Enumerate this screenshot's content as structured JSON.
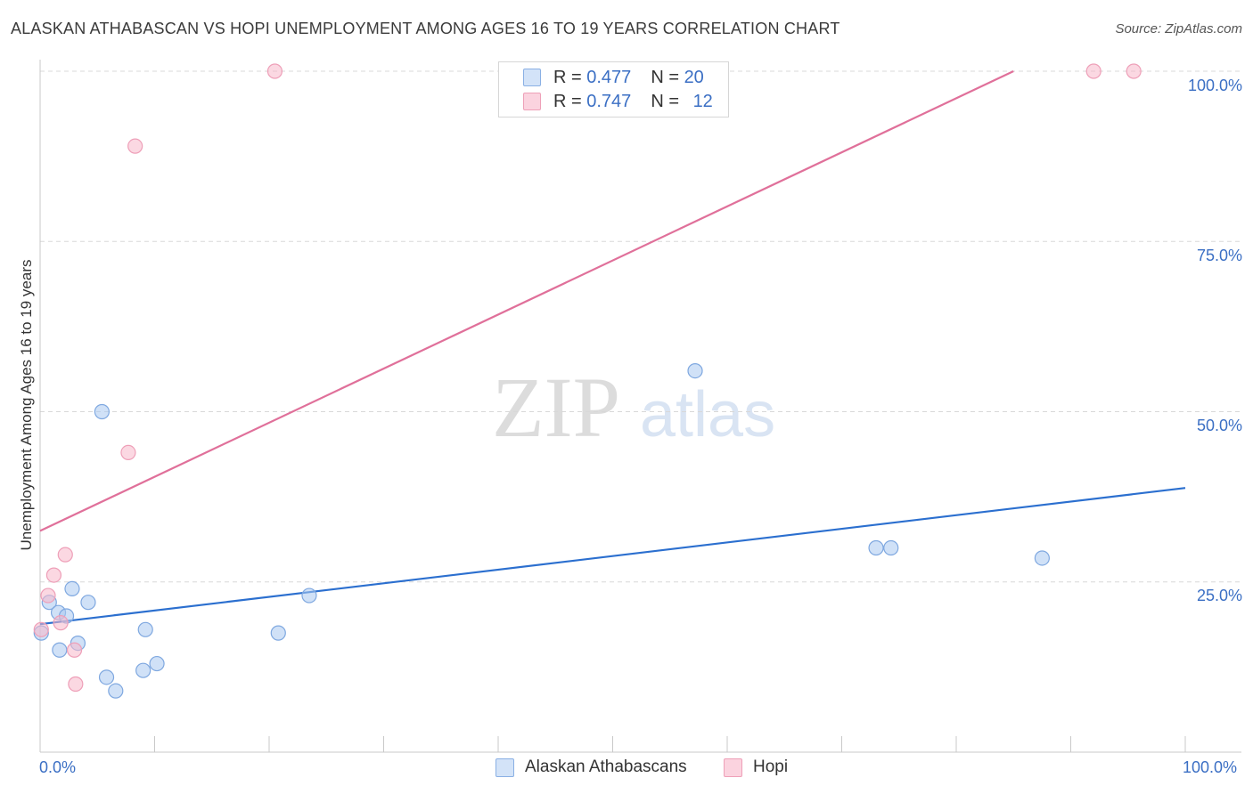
{
  "title": "ALASKAN ATHABASCAN VS HOPI UNEMPLOYMENT AMONG AGES 16 TO 19 YEARS CORRELATION CHART",
  "source": "Source: ZipAtlas.com",
  "watermark": {
    "zip": "ZIP",
    "atlas": "atlas"
  },
  "legend": {
    "rows": [
      {
        "r_label": "R =",
        "r_value": "0.477",
        "n_label": "N =",
        "n_value": "20",
        "color": "#aac8f0"
      },
      {
        "r_label": "R =",
        "r_value": "0.747",
        "n_label": "N =",
        "n_value": "12",
        "color": "#f7b8cb"
      }
    ]
  },
  "bottom_legend": [
    "Alaskan Athabascans",
    "Hopi"
  ],
  "colors": {
    "blue_fill": "#aac8f0",
    "blue_line": "#2b6fcf",
    "pink_fill": "#f7b8cb",
    "pink_line": "#e0709a",
    "tick_text": "#3b6fc4"
  },
  "chart_data": {
    "type": "scatter",
    "title": "ALASKAN ATHABASCAN VS HOPI UNEMPLOYMENT AMONG AGES 16 TO 19 YEARS CORRELATION CHART",
    "xlabel": "",
    "ylabel": "Unemployment Among Ages 16 to 19 years",
    "xlim": [
      0,
      100
    ],
    "ylim": [
      0,
      100
    ],
    "x_tick_labels": [
      "0.0%",
      "100.0%"
    ],
    "y_ticks": [
      25,
      50,
      75,
      100
    ],
    "y_tick_labels": [
      "25.0%",
      "50.0%",
      "75.0%",
      "100.0%"
    ],
    "grid": true,
    "series": [
      {
        "name": "Alaskan Athabascans",
        "points": [
          [
            0.1,
            17.5
          ],
          [
            0.8,
            22
          ],
          [
            1.6,
            20.5
          ],
          [
            1.7,
            15
          ],
          [
            2.3,
            20
          ],
          [
            2.8,
            24
          ],
          [
            3.3,
            16
          ],
          [
            4.2,
            22
          ],
          [
            5.4,
            50
          ],
          [
            5.8,
            11
          ],
          [
            6.6,
            9
          ],
          [
            9.0,
            12
          ],
          [
            9.2,
            18
          ],
          [
            10.2,
            13
          ],
          [
            23.5,
            23
          ],
          [
            20.8,
            17.5
          ],
          [
            57.2,
            56
          ],
          [
            73.0,
            30
          ],
          [
            74.3,
            30
          ],
          [
            87.5,
            28.5
          ]
        ],
        "trend": {
          "x": [
            0,
            100
          ],
          "y": [
            18.8,
            38.8
          ]
        }
      },
      {
        "name": "Hopi",
        "points": [
          [
            0.1,
            18
          ],
          [
            0.7,
            23
          ],
          [
            1.2,
            26
          ],
          [
            1.8,
            19
          ],
          [
            2.2,
            29
          ],
          [
            3.0,
            15
          ],
          [
            3.1,
            10
          ],
          [
            7.7,
            44
          ],
          [
            8.3,
            89
          ],
          [
            20.5,
            100
          ],
          [
            92.0,
            100
          ],
          [
            95.5,
            100
          ]
        ],
        "trend": {
          "x": [
            0,
            85
          ],
          "y": [
            32.5,
            100
          ]
        }
      }
    ]
  }
}
